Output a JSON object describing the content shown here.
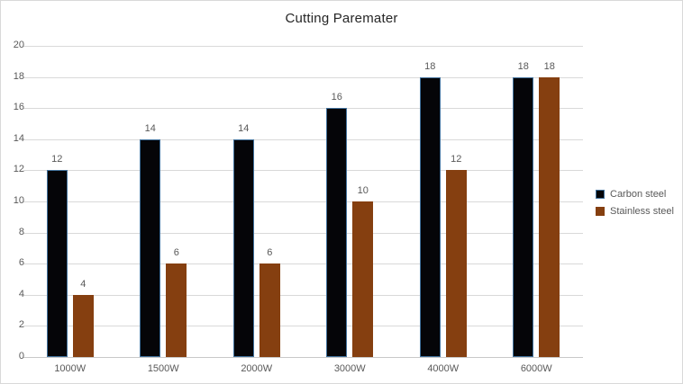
{
  "chart_data": {
    "type": "bar",
    "title": "Cutting Paremater",
    "categories": [
      "1000W",
      "1500W",
      "2000W",
      "3000W",
      "4000W",
      "6000W"
    ],
    "series": [
      {
        "name": "Carbon steel",
        "values": [
          12,
          14,
          14,
          16,
          18,
          18
        ],
        "color": "#050508",
        "border_color": "#41719C"
      },
      {
        "name": "Stainless steel",
        "values": [
          4,
          6,
          6,
          10,
          12,
          18
        ],
        "color": "#853F10",
        "border_color": "#853F10"
      }
    ],
    "xlabel": "",
    "ylabel": "",
    "ylim": [
      0,
      20
    ],
    "ytick_step": 2,
    "grid": "horizontal",
    "data_labels": true,
    "legend_position": "right",
    "colors": {
      "background": "#FFFFFF",
      "chart_border": "#D9D9D9",
      "gridline": "#D9D9D9",
      "axis_line": "#C9C9C9",
      "tick_label": "#595959",
      "data_label": "#595959",
      "title": "#262626"
    }
  }
}
